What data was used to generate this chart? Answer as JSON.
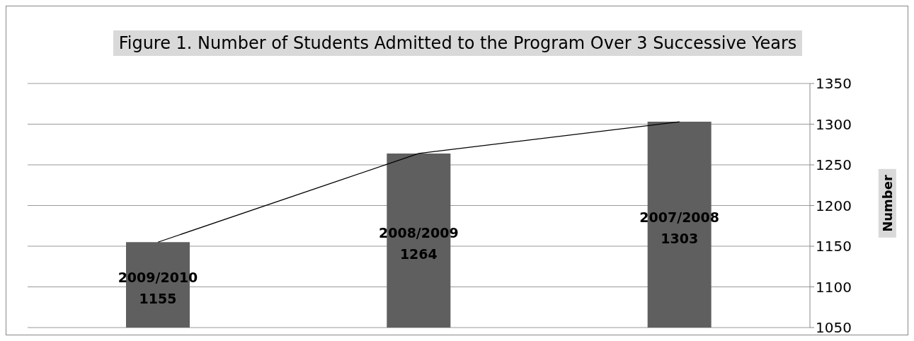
{
  "chart_data": {
    "type": "bar",
    "title": "Figure 1. Number of Students Admitted to the Program Over 3 Successive Years",
    "ylabel": "Number",
    "categories": [
      "2009/2010",
      "2008/2009",
      "2007/2008"
    ],
    "series": [
      {
        "color": "#5f5f5f",
        "values": [
          1155,
          1264,
          1303
        ],
        "value_labels": [
          "1155",
          "1264",
          "1303"
        ]
      },
      {
        "type": "line",
        "color": "#000000",
        "values": [
          1155,
          1264,
          1303
        ]
      }
    ],
    "ylim": [
      1050,
      1350
    ],
    "yticks": [
      1050,
      1100,
      1150,
      1200,
      1250,
      1300,
      1350
    ],
    "grid": "y",
    "legend": false,
    "marker": "none",
    "line_style": "solid"
  }
}
